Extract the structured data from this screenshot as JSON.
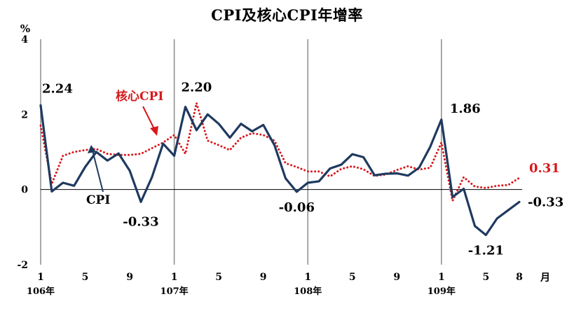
{
  "chart_data": {
    "type": "line",
    "title": "CPI及核心CPI年增率",
    "ylabel": "%",
    "xunit": "月",
    "ylim": [
      -2,
      4
    ],
    "yticks": [
      -2,
      0,
      2,
      4
    ],
    "x_ticks": [
      {
        "index": 0,
        "label": "1",
        "year": "106年"
      },
      {
        "index": 4,
        "label": "5"
      },
      {
        "index": 8,
        "label": "9"
      },
      {
        "index": 12,
        "label": "1",
        "year": "107年"
      },
      {
        "index": 16,
        "label": "5"
      },
      {
        "index": 20,
        "label": "9"
      },
      {
        "index": 24,
        "label": "1",
        "year": "108年"
      },
      {
        "index": 28,
        "label": "5"
      },
      {
        "index": 32,
        "label": "9"
      },
      {
        "index": 36,
        "label": "1",
        "year": "109年"
      },
      {
        "index": 40,
        "label": "5"
      },
      {
        "index": 43,
        "label": "8"
      }
    ],
    "year_dividers": [
      0,
      12,
      24,
      36
    ],
    "series": [
      {
        "name": "CPI",
        "color": "#1f3a5f",
        "style": "solid",
        "values": [
          2.24,
          -0.05,
          0.18,
          0.1,
          0.6,
          1.0,
          0.77,
          0.96,
          0.5,
          -0.33,
          0.33,
          1.22,
          0.9,
          2.2,
          1.58,
          2.0,
          1.75,
          1.38,
          1.75,
          1.55,
          1.72,
          1.18,
          0.3,
          -0.06,
          0.18,
          0.22,
          0.56,
          0.66,
          0.94,
          0.86,
          0.38,
          0.42,
          0.43,
          0.37,
          0.58,
          1.14,
          1.86,
          -0.2,
          0.02,
          -0.97,
          -1.21,
          -0.77,
          -0.55,
          -0.33
        ]
      },
      {
        "name": "核心CPI",
        "color": "#d7191c",
        "style": "dotted",
        "values": [
          1.7,
          0.15,
          0.9,
          1.0,
          1.05,
          1.08,
          0.95,
          0.92,
          0.92,
          0.95,
          1.1,
          1.25,
          1.45,
          0.95,
          2.3,
          1.3,
          1.18,
          1.05,
          1.38,
          1.5,
          1.45,
          1.3,
          0.7,
          0.6,
          0.48,
          0.48,
          0.35,
          0.55,
          0.62,
          0.54,
          0.36,
          0.4,
          0.52,
          0.62,
          0.53,
          0.58,
          1.25,
          -0.3,
          0.33,
          0.08,
          0.04,
          0.1,
          0.12,
          0.31
        ]
      }
    ],
    "annotations": [
      {
        "text": "2.24",
        "series": "CPI",
        "index": 0,
        "color": "#000000"
      },
      {
        "text": "-0.33",
        "series": "CPI",
        "index": 9,
        "color": "#000000"
      },
      {
        "text": "2.20",
        "series": "CPI",
        "index": 13,
        "color": "#000000"
      },
      {
        "text": "-0.06",
        "series": "CPI",
        "index": 23,
        "color": "#000000"
      },
      {
        "text": "1.86",
        "series": "CPI",
        "index": 36,
        "color": "#000000"
      },
      {
        "text": "-1.21",
        "series": "CPI",
        "index": 40,
        "color": "#000000"
      },
      {
        "text": "-0.33",
        "series": "CPI",
        "index": 43,
        "color": "#000000"
      },
      {
        "text": "0.31",
        "series": "核心CPI",
        "index": 43,
        "color": "#d7191c"
      }
    ],
    "callouts": [
      {
        "text": "核心CPI",
        "series": "核心CPI",
        "color": "#d7191c"
      },
      {
        "text": "CPI",
        "series": "CPI",
        "color": "#000000"
      }
    ]
  }
}
